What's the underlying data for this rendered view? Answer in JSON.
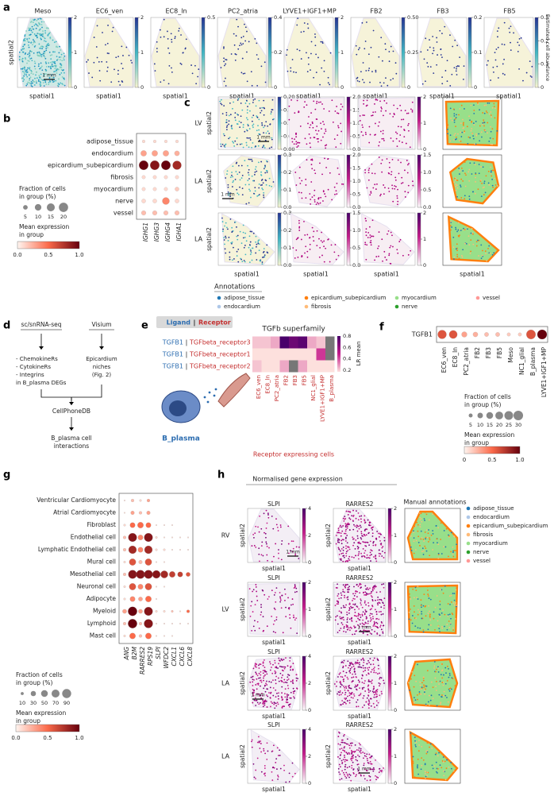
{
  "a": {
    "label": "a",
    "titles": [
      "Meso",
      "EC6_ven",
      "EC8_ln",
      "PC2_atria",
      "LYVE1+IGF1+MP",
      "FB2",
      "FB3",
      "FB5"
    ],
    "ticks": [
      [
        "0",
        "1",
        "2"
      ],
      [
        "0",
        "1",
        "2"
      ],
      [
        "0",
        "0.5"
      ],
      [
        "0",
        "0.2",
        "0.4"
      ],
      [
        "0",
        "1",
        "2"
      ],
      [
        "0",
        "0.25",
        "0.50"
      ],
      [
        "0",
        "0.1",
        "0.2"
      ],
      [
        "0",
        "0.1",
        "0.2",
        "0.3"
      ]
    ],
    "xlabel": "spatial1",
    "ylabel": "spatial2",
    "cbar_label": "Estimated cell abundance",
    "scale": "1 mm"
  },
  "b": {
    "label": "b",
    "rows": [
      "adipose_tissue",
      "endocardium",
      "epicardium_subepicardium",
      "fibrosis",
      "myocardium",
      "nerve",
      "vessel"
    ],
    "cols": [
      "IGHG1",
      "IGHG3",
      "IGHG4",
      "IGHA1"
    ],
    "fraction": [
      [
        2,
        2,
        2,
        2
      ],
      [
        8,
        8,
        8,
        6
      ],
      [
        20,
        20,
        20,
        18
      ],
      [
        3,
        3,
        3,
        3
      ],
      [
        3,
        3,
        3,
        4
      ],
      [
        4,
        4,
        12,
        4
      ],
      [
        5,
        5,
        5,
        5
      ]
    ],
    "expression": [
      [
        0.1,
        0.1,
        0.1,
        0.1
      ],
      [
        0.3,
        0.3,
        0.3,
        0.25
      ],
      [
        1.0,
        0.9,
        1.0,
        0.8
      ],
      [
        0.1,
        0.1,
        0.1,
        0.1
      ],
      [
        0.1,
        0.1,
        0.1,
        0.15
      ],
      [
        0.1,
        0.1,
        0.4,
        0.1
      ],
      [
        0.2,
        0.2,
        0.2,
        0.2
      ]
    ],
    "size_title": [
      "Fraction of cells",
      "in group (%)"
    ],
    "sizes": [
      5,
      10,
      15,
      20
    ],
    "color_title": [
      "Mean expression",
      "in group"
    ],
    "color_ticks": [
      "0.0",
      "0.5",
      "1.0"
    ]
  },
  "c": {
    "label": "c",
    "rows": [
      "LV",
      "LA",
      "LA"
    ],
    "ylabel": "spatial2",
    "xlabel": "spatial1",
    "scale": "1 mm",
    "ticks": [
      [
        [
          "0.00",
          "0.05",
          "0.10",
          "0.15",
          "0.20"
        ],
        [
          "0.0",
          "0.5",
          "1.0",
          "1.5",
          "2.0"
        ],
        [
          "0",
          "1",
          "2"
        ]
      ],
      [
        [
          "0.0",
          "0.1",
          "0.2",
          "0.3"
        ],
        [
          "0.0",
          "0.5",
          "1.0",
          "1.5",
          "2.0"
        ],
        [
          "0.0",
          "0.5",
          "1.0",
          "1.5"
        ]
      ],
      [
        [
          "0.0",
          "0.1",
          "0.2",
          "0.3"
        ],
        [
          "0.0",
          "0.5",
          "1.0",
          "1.5"
        ],
        [
          "0",
          "1",
          "2"
        ]
      ]
    ],
    "legend_title": "Annotations",
    "legend": [
      "adipose_tissue",
      "epicardium_subepicardium",
      "myocardium",
      "vessel",
      "endocardium",
      "fibrosis",
      "nerve"
    ],
    "colors": [
      "#1f77b4",
      "#ff7f0e",
      "#98df8a",
      "#ff9896",
      "#aec7e8",
      "#ffbb78",
      "#2ca02c"
    ]
  },
  "d": {
    "label": "d",
    "left_title": "sc/snRNA-seq",
    "right_title": "Visium",
    "left_items": [
      "- ChemokineRs",
      "- CytokineRs",
      "- Integrins",
      "in B_plasma DEGs"
    ],
    "right_items": [
      "Epicardium",
      "niches",
      "(Fig. 2)"
    ],
    "tool": "CellPhoneDB",
    "result": [
      "B_plasma cell",
      "interactions"
    ]
  },
  "e": {
    "label": "e",
    "key": [
      "Ligand",
      "|",
      "Receptor"
    ],
    "title": "TGFb superfamily",
    "separator": "|",
    "rows": [
      {
        "ligand": "TGFB1",
        "receptor": "TGFbeta_receptor3"
      },
      {
        "ligand": "TGFB1",
        "receptor": "TGFbeta_receptor1"
      },
      {
        "ligand": "TGFB1",
        "receptor": "TGFbeta_receptor2"
      }
    ],
    "cols": [
      "EC6_ven",
      "EC8_ln",
      "PC2_atria",
      "FB2",
      "FB3",
      "FB5",
      "NC1_glial",
      "LYVE1+IGF1+MP",
      "B_plasma"
    ],
    "values": [
      [
        0.25,
        0.25,
        0.3,
        0.9,
        0.8,
        0.85,
        0.3,
        0.25,
        null
      ],
      [
        0.2,
        0.2,
        0.2,
        0.2,
        0.2,
        0.2,
        0.2,
        0.5,
        null
      ],
      [
        0.25,
        0.2,
        0.2,
        0.3,
        null,
        0.3,
        0.2,
        0.2,
        0.2
      ]
    ],
    "cbar_label": "LR mean",
    "cbar_ticks": [
      0.2,
      0.4,
      0.6,
      0.8
    ],
    "xlabel": "Receptor expressing cells",
    "cell": "B_plasma"
  },
  "f": {
    "label": "f",
    "gene": "TGFB1",
    "cols": [
      "EC6_ven",
      "EC8_ln",
      "PC2_atria",
      "FB2",
      "FB3",
      "FB5",
      "Meso",
      "NC1_glial",
      "B_plasma",
      "LYVE1+IGF1+MP"
    ],
    "fraction": [
      25,
      22,
      10,
      8,
      6,
      6,
      4,
      4,
      28,
      30
    ],
    "expression": [
      0.6,
      0.6,
      0.3,
      0.25,
      0.2,
      0.2,
      0.15,
      0.15,
      0.6,
      1.0
    ],
    "size_title": [
      "Fraction of cells",
      "in group (%)"
    ],
    "sizes": [
      5,
      10,
      15,
      20,
      25,
      30
    ],
    "color_title": [
      "Mean expression",
      "in group"
    ],
    "color_ticks": [
      "0",
      "0.5",
      "1.0"
    ]
  },
  "g": {
    "label": "g",
    "rows": [
      "Ventricular Cardiomyocyte",
      "Atrial Cardiomyocyte",
      "Fibroblast",
      "Endothelial cell",
      "Lymphatic Endothelial cell",
      "Mural cell",
      "Mesothelial cell",
      "Neuronal cell",
      "Adipocyte",
      "Myeloid",
      "Lymphoid",
      "Mast cell"
    ],
    "cols": [
      "ANG",
      "B2M",
      "RARRES2",
      "RPS19",
      "SLPI",
      "WFDC2",
      "CXCL1",
      "CXCL6",
      "CXCL8"
    ],
    "fraction": [
      [
        2,
        10,
        5,
        10,
        0,
        0,
        0,
        0,
        0
      ],
      [
        2,
        15,
        10,
        15,
        0,
        0,
        0,
        0,
        0
      ],
      [
        5,
        30,
        40,
        30,
        2,
        2,
        2,
        0,
        0
      ],
      [
        10,
        80,
        30,
        80,
        5,
        2,
        2,
        2,
        2
      ],
      [
        10,
        70,
        30,
        70,
        5,
        5,
        2,
        2,
        2
      ],
      [
        5,
        50,
        15,
        50,
        2,
        2,
        0,
        0,
        0
      ],
      [
        10,
        80,
        80,
        80,
        70,
        60,
        40,
        30,
        20
      ],
      [
        5,
        50,
        30,
        50,
        2,
        2,
        0,
        0,
        0
      ],
      [
        5,
        30,
        20,
        40,
        2,
        0,
        0,
        0,
        0
      ],
      [
        20,
        90,
        20,
        80,
        5,
        5,
        5,
        2,
        10
      ],
      [
        10,
        90,
        10,
        85,
        2,
        2,
        2,
        2,
        2
      ],
      [
        5,
        40,
        10,
        40,
        2,
        2,
        2,
        0,
        0
      ]
    ],
    "expression": [
      [
        0.1,
        0.2,
        0.1,
        0.3,
        0,
        0,
        0,
        0,
        0
      ],
      [
        0.1,
        0.3,
        0.2,
        0.3,
        0,
        0,
        0,
        0,
        0
      ],
      [
        0.1,
        0.5,
        0.5,
        0.5,
        0.1,
        0.1,
        0.1,
        0,
        0
      ],
      [
        0.2,
        0.9,
        0.4,
        0.9,
        0.1,
        0.1,
        0.1,
        0.1,
        0.1
      ],
      [
        0.2,
        0.8,
        0.4,
        0.8,
        0.1,
        0.1,
        0.1,
        0.1,
        0.1
      ],
      [
        0.1,
        0.6,
        0.2,
        0.6,
        0.1,
        0.1,
        0,
        0,
        0
      ],
      [
        0.2,
        0.9,
        0.9,
        0.9,
        0.9,
        0.8,
        0.7,
        0.7,
        0.6
      ],
      [
        0.1,
        0.6,
        0.4,
        0.6,
        0.1,
        0.1,
        0,
        0,
        0
      ],
      [
        0.1,
        0.4,
        0.3,
        0.5,
        0.1,
        0,
        0,
        0,
        0
      ],
      [
        0.3,
        1.0,
        0.3,
        0.9,
        0.1,
        0.1,
        0.2,
        0.1,
        0.5
      ],
      [
        0.2,
        1.0,
        0.2,
        0.9,
        0.1,
        0.1,
        0.1,
        0.1,
        0.1
      ],
      [
        0.1,
        0.5,
        0.2,
        0.5,
        0.1,
        0.1,
        0.1,
        0,
        0
      ]
    ],
    "size_title": [
      "Fraction of cells",
      "in group (%)"
    ],
    "sizes": [
      10,
      30,
      50,
      70,
      90
    ],
    "color_title": [
      "Mean expression",
      "in group"
    ],
    "color_ticks": [
      "0.0",
      "0.5",
      "1.0"
    ]
  },
  "h": {
    "label": "h",
    "title": "Normalised gene expression",
    "ann_title": "Manual annotations",
    "rows": [
      "RV",
      "LV",
      "LA",
      "LA"
    ],
    "genes": [
      [
        "SLPI",
        "RARRES2"
      ],
      [
        "SLPI",
        "RARRES2"
      ],
      [
        "SLPI",
        "RARRES2"
      ],
      [
        "SLPI",
        "RARRES2"
      ]
    ],
    "ticks": [
      [
        [
          "0",
          "2",
          "4"
        ],
        [
          "0",
          "1",
          "2"
        ]
      ],
      [
        [
          "0",
          "1",
          "2"
        ],
        [
          "0",
          "1",
          "2"
        ]
      ],
      [
        [
          "0",
          "2",
          "4"
        ],
        [
          "0",
          "1",
          "2"
        ]
      ],
      [
        [
          "0",
          "2",
          "4"
        ],
        [
          "0",
          "1",
          "2"
        ]
      ]
    ],
    "xlabel": "spatial1",
    "ylabel": "spatial2",
    "scale": "1 mm",
    "legend": [
      "adipose_tissue",
      "endocardium",
      "epicardium_subepicardium",
      "fibrosis",
      "myocardium",
      "nerve",
      "vessel"
    ],
    "colors": [
      "#1f77b4",
      "#aec7e8",
      "#ff7f0e",
      "#ffbb78",
      "#98df8a",
      "#2ca02c",
      "#ff9896"
    ]
  }
}
